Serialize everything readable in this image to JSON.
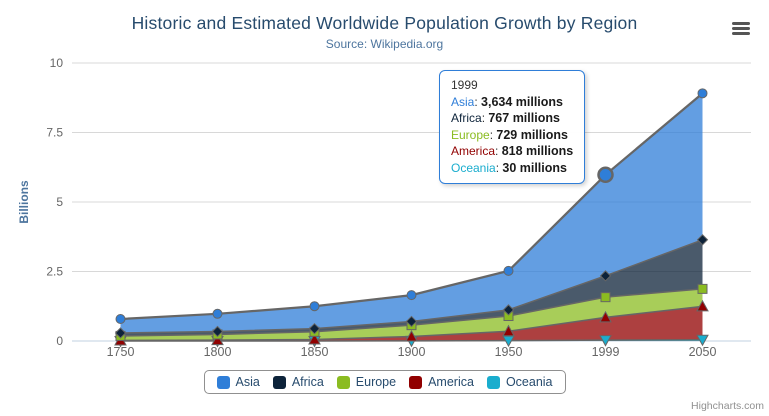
{
  "header": {
    "title": "Historic and Estimated Worldwide Population Growth by Region",
    "subtitle": "Source: Wikipedia.org"
  },
  "export_menu": {
    "icon": "hamburger-menu-icon"
  },
  "credits": "Highcharts.com",
  "chart_data": {
    "type": "area",
    "stacking": "normal",
    "title": "Historic and Estimated Worldwide Population Growth by Region",
    "subtitle": "Source: Wikipedia.org",
    "categories": [
      "1750",
      "1800",
      "1850",
      "1900",
      "1950",
      "1999",
      "2050"
    ],
    "series": [
      {
        "name": "Asia",
        "color": "#2f7ed8",
        "marker": "circle",
        "values": [
          502,
          635,
          809,
          947,
          1402,
          3634,
          5268
        ]
      },
      {
        "name": "Africa",
        "color": "#0d233a",
        "marker": "diamond",
        "values": [
          106,
          107,
          111,
          133,
          221,
          767,
          1766
        ]
      },
      {
        "name": "Europe",
        "color": "#8bbc21",
        "marker": "square",
        "values": [
          163,
          203,
          276,
          408,
          547,
          729,
          628
        ]
      },
      {
        "name": "America",
        "color": "#910000",
        "marker": "triangle",
        "values": [
          18,
          31,
          54,
          156,
          339,
          818,
          1201
        ]
      },
      {
        "name": "Oceania",
        "color": "#1aadce",
        "marker": "triangle-down",
        "values": [
          2,
          2,
          2,
          6,
          13,
          30,
          46
        ]
      }
    ],
    "values_unit": "millions",
    "unit_divisor": 1000,
    "xlabel": "",
    "ylabel": "Billions",
    "yticks": [
      0,
      2.5,
      5,
      7.5,
      10
    ],
    "ylim": [
      0,
      10
    ],
    "grid": true,
    "legend_position": "bottom",
    "line_color": "#666666",
    "fill_opacity": 0.75,
    "axis_line_color": "#c0d0e0",
    "grid_color": "#d8d8d8",
    "hover": {
      "series": "Asia",
      "category": "1999"
    }
  },
  "tooltip": {
    "header": "1999",
    "rows": [
      {
        "name": "Asia",
        "color": "#2f7ed8",
        "value": "3,634 millions"
      },
      {
        "name": "Africa",
        "color": "#0d233a",
        "value": "767 millions"
      },
      {
        "name": "Europe",
        "color": "#8bbc21",
        "value": "729 millions"
      },
      {
        "name": "America",
        "color": "#910000",
        "value": "818 millions"
      },
      {
        "name": "Oceania",
        "color": "#1aadce",
        "value": "30 millions"
      }
    ]
  },
  "legend": {
    "items": [
      "Asia",
      "Africa",
      "Europe",
      "America",
      "Oceania"
    ]
  }
}
